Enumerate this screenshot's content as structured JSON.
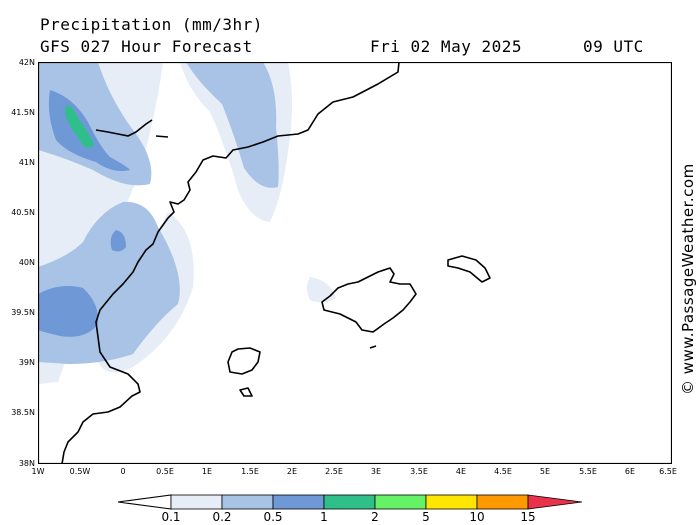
{
  "header": {
    "title": "Precipitation (mm/3hr)",
    "subtitle": "GFS 027 Hour Forecast",
    "date": "Fri 02 May 2025",
    "time": "09 UTC"
  },
  "credit": "© www.PassageWeather.com",
  "axes": {
    "lat_labels": [
      "42N",
      "41.5N",
      "41N",
      "40.5N",
      "40N",
      "39.5N",
      "39N",
      "38.5N",
      "38N"
    ],
    "lon_labels": [
      "1W",
      "0.5W",
      "0",
      "0.5E",
      "1E",
      "1.5E",
      "2E",
      "2.5E",
      "3E",
      "3.5E",
      "4E",
      "4.5E",
      "5E",
      "5.5E",
      "6E",
      "6.5E"
    ]
  },
  "legend": {
    "labels": [
      "0.1",
      "0.2",
      "0.5",
      "1",
      "2",
      "5",
      "10",
      "15"
    ],
    "colors": [
      "#e6edf7",
      "#a8c3e6",
      "#6e98d6",
      "#2fbf88",
      "#66f266",
      "#ffe600",
      "#ff9900",
      "#e8334a"
    ]
  }
}
